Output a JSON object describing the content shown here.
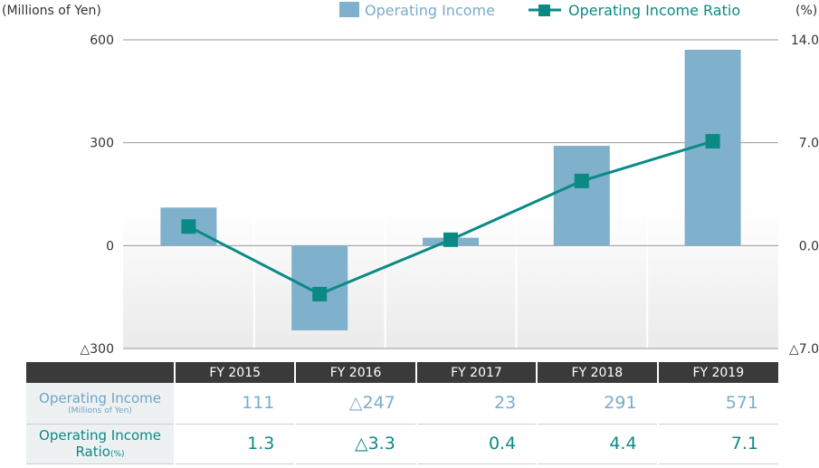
{
  "chart_data": {
    "type": "bar+line",
    "categories": [
      "FY 2015",
      "FY 2016",
      "FY 2017",
      "FY 2018",
      "FY 2019"
    ],
    "series": [
      {
        "name": "Operating Income",
        "type": "bar",
        "axis": "left",
        "values": [
          111,
          -247,
          23,
          291,
          571
        ],
        "color": "#7fb0cc"
      },
      {
        "name": "Operating Income Ratio",
        "type": "line",
        "axis": "right",
        "values": [
          1.3,
          -3.3,
          0.4,
          4.4,
          7.1
        ],
        "color": "#0b8a85"
      }
    ],
    "yleft": {
      "label": "(Millions of Yen)",
      "ylim": [
        -300,
        600
      ],
      "ticks": [
        600,
        300,
        0,
        -300
      ],
      "tick_labels": [
        "600",
        "300",
        "0",
        "△300"
      ]
    },
    "yright": {
      "label": "(%)",
      "ylim": [
        -7.0,
        14.0
      ],
      "ticks": [
        14.0,
        7.0,
        0.0,
        -7.0
      ],
      "tick_labels": [
        "14.0",
        "7.0",
        "0.0",
        "△7.0"
      ]
    },
    "grid": true,
    "legend": "top"
  },
  "table": {
    "row_oi_label": "Operating Income",
    "row_oi_unit": "(Millions of Yen)",
    "row_ratio_label_1": "Operating Income",
    "row_ratio_label_2": "Ratio",
    "row_ratio_unit": "(%)",
    "oi_values": [
      "111",
      "△247",
      "23",
      "291",
      "571"
    ],
    "ratio_values": [
      "1.3",
      "△3.3",
      "0.4",
      "4.4",
      "7.1"
    ]
  }
}
